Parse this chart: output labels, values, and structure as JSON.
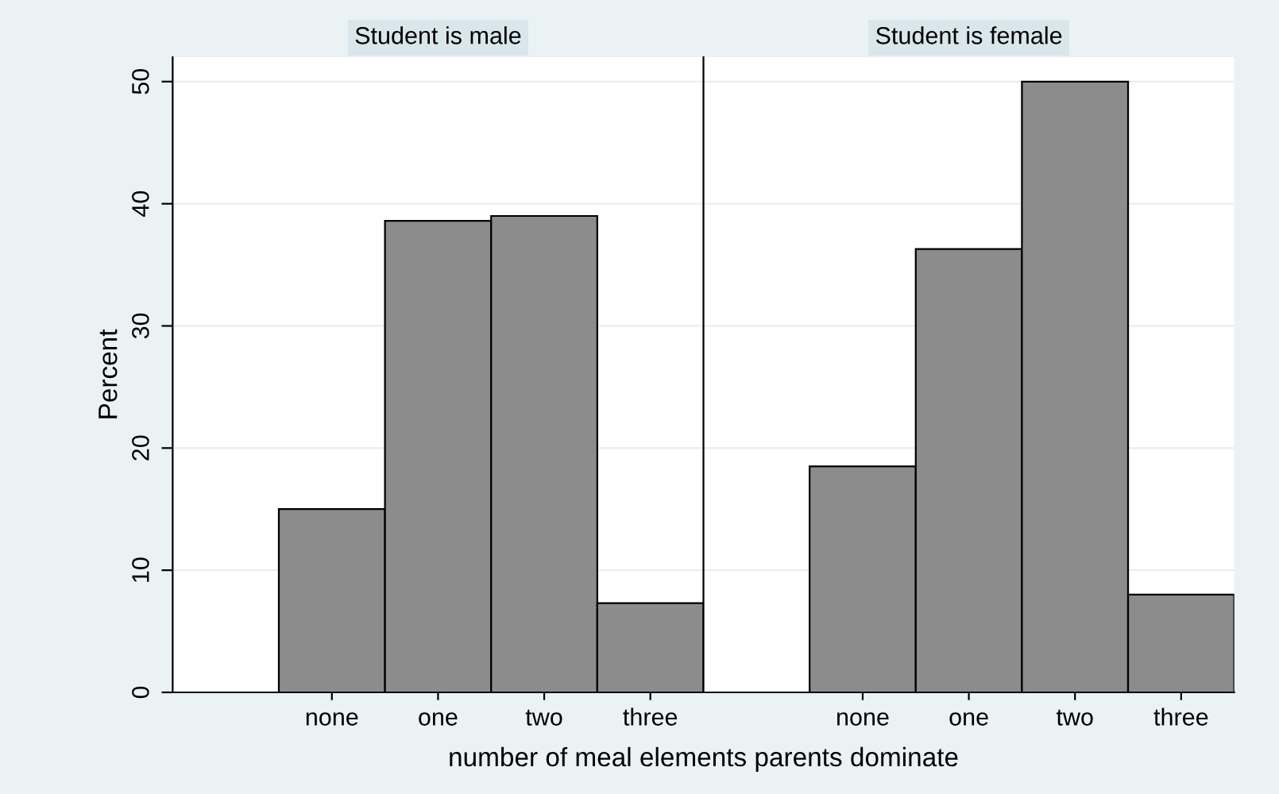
{
  "chart_data": [
    {
      "type": "bar",
      "title": "Student is male",
      "ylabel": "Percent",
      "xlabel": "number of meal elements parents dominate",
      "categories": [
        "none",
        "one",
        "two",
        "three"
      ],
      "values": [
        15.0,
        38.6,
        39.0,
        7.3
      ],
      "color": "#8c8c8c",
      "ylim": [
        0,
        52
      ],
      "yticks": [
        0,
        10,
        20,
        30,
        40,
        50
      ],
      "grid": "y"
    },
    {
      "type": "bar",
      "title": "Student is female",
      "categories": [
        "none",
        "one",
        "two",
        "three"
      ],
      "values": [
        18.5,
        36.3,
        50.0,
        8.0
      ],
      "color": "#8c8c8c",
      "ylim": [
        0,
        52
      ],
      "yticks": [
        0,
        10,
        20,
        30,
        40,
        50
      ],
      "grid": "y",
      "tick_labels": "x"
    }
  ]
}
